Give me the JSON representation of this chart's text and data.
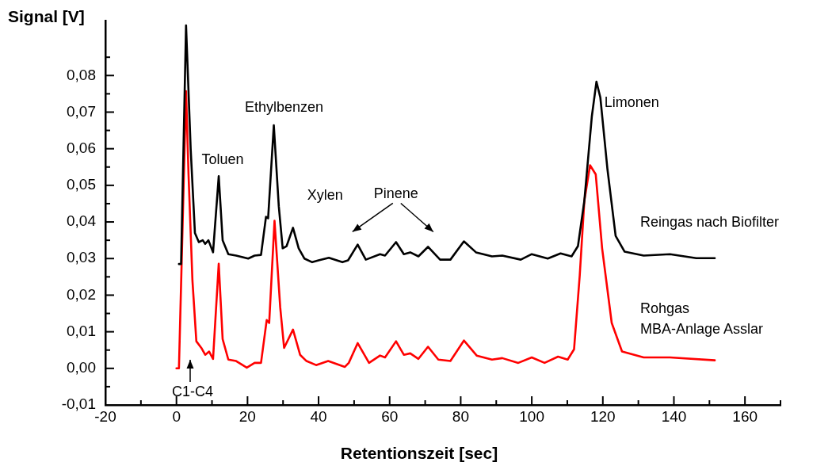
{
  "chart_data": {
    "type": "line",
    "xlabel": "Retentionszeit [sec]",
    "ylabel": "Signal [V]",
    "xlim": [
      -20,
      170
    ],
    "ylim": [
      -0.01,
      0.095
    ],
    "xticks": [
      {
        "value": -20,
        "label": "-20"
      },
      {
        "value": -10,
        "label": null
      },
      {
        "value": 0,
        "label": "0"
      },
      {
        "value": 10,
        "label": null
      },
      {
        "value": 20,
        "label": "20"
      },
      {
        "value": 30,
        "label": null
      },
      {
        "value": 40,
        "label": "40"
      },
      {
        "value": 50,
        "label": null
      },
      {
        "value": 60,
        "label": "60"
      },
      {
        "value": 70,
        "label": null
      },
      {
        "value": 80,
        "label": "80"
      },
      {
        "value": 90,
        "label": null
      },
      {
        "value": 100,
        "label": "100"
      },
      {
        "value": 110,
        "label": null
      },
      {
        "value": 120,
        "label": "120"
      },
      {
        "value": 130,
        "label": null
      },
      {
        "value": 140,
        "label": "140"
      },
      {
        "value": 150,
        "label": null
      },
      {
        "value": 160,
        "label": "160"
      },
      {
        "value": 170,
        "label": null
      }
    ],
    "yticks": [
      {
        "value": -0.01,
        "label": "-0,01"
      },
      {
        "value": -0.005,
        "label": null
      },
      {
        "value": 0,
        "label": "0,00"
      },
      {
        "value": 0.005,
        "label": null
      },
      {
        "value": 0.01,
        "label": "0,01"
      },
      {
        "value": 0.015,
        "label": null
      },
      {
        "value": 0.02,
        "label": "0,02"
      },
      {
        "value": 0.025,
        "label": null
      },
      {
        "value": 0.03,
        "label": "0,03"
      },
      {
        "value": 0.035,
        "label": null
      },
      {
        "value": 0.04,
        "label": "0,04"
      },
      {
        "value": 0.045,
        "label": null
      },
      {
        "value": 0.05,
        "label": "0,05"
      },
      {
        "value": 0.055,
        "label": null
      },
      {
        "value": 0.06,
        "label": "0,06"
      },
      {
        "value": 0.065,
        "label": null
      },
      {
        "value": 0.07,
        "label": "0,07"
      },
      {
        "value": 0.075,
        "label": null
      },
      {
        "value": 0.08,
        "label": "0,08"
      },
      {
        "value": 0.085,
        "label": null
      }
    ],
    "grid": false,
    "marker": "none",
    "line_style": "solid",
    "series": [
      {
        "name": "Reingas nach Biofilter",
        "color": "#000000",
        "x": [
          0.7,
          1.3,
          2.7,
          4.0,
          5.2,
          6.3,
          7.4,
          8.1,
          9.0,
          10.3,
          11.9,
          13.0,
          14.6,
          16.8,
          20.2,
          22.0,
          23.8,
          25.2,
          25.8,
          27.4,
          28.8,
          29.9,
          31.0,
          32.8,
          34.4,
          36.0,
          38.2,
          40.0,
          42.9,
          46.7,
          48.3,
          51.0,
          53.3,
          57.3,
          58.7,
          61.8,
          64.0,
          65.8,
          68.1,
          70.8,
          74.2,
          77.1,
          80.9,
          84.3,
          88.8,
          91.7,
          96.9,
          100.0,
          104.5,
          108.1,
          111.2,
          113.0,
          114.8,
          116.9,
          118.2,
          119.3,
          121.3,
          123.6,
          126.1,
          131.5,
          138.9,
          146.3,
          151.5
        ],
        "values": [
          0.0285,
          0.0285,
          0.0937,
          0.06,
          0.037,
          0.0345,
          0.035,
          0.034,
          0.035,
          0.0317,
          0.0525,
          0.035,
          0.0312,
          0.0308,
          0.03,
          0.0308,
          0.031,
          0.0414,
          0.041,
          0.0664,
          0.0443,
          0.0328,
          0.0334,
          0.0384,
          0.0328,
          0.03,
          0.029,
          0.0295,
          0.0302,
          0.029,
          0.0295,
          0.0338,
          0.0297,
          0.0312,
          0.0308,
          0.0345,
          0.0312,
          0.0317,
          0.0306,
          0.0332,
          0.0297,
          0.0297,
          0.0347,
          0.0317,
          0.0306,
          0.0308,
          0.0297,
          0.0312,
          0.03,
          0.0314,
          0.0306,
          0.0334,
          0.0458,
          0.0688,
          0.0783,
          0.074,
          0.0544,
          0.0362,
          0.0319,
          0.0308,
          0.0312,
          0.0301,
          0.0301
        ]
      },
      {
        "name": "Rohgas MBA-Anlage Asslar",
        "color": "#ff0000",
        "x": [
          0,
          0.7,
          2.7,
          3.4,
          4.5,
          5.6,
          7.0,
          8.1,
          9.2,
          10.3,
          11.9,
          13.0,
          14.6,
          16.8,
          19.8,
          22.0,
          23.8,
          25.4,
          26.1,
          27.6,
          29.2,
          30.3,
          32.8,
          34.8,
          36.6,
          39.3,
          42.7,
          47.4,
          48.5,
          51.0,
          54.2,
          57.3,
          58.7,
          61.8,
          64.0,
          65.8,
          68.1,
          70.8,
          73.7,
          77.1,
          80.9,
          84.5,
          88.8,
          91.7,
          96.2,
          100.0,
          103.6,
          107.4,
          110.1,
          111.9,
          113.5,
          114.8,
          116.4,
          118.0,
          119.8,
          122.5,
          125.4,
          131.5,
          138.9,
          151.5
        ],
        "values": [
          0.0,
          0.0,
          0.0757,
          0.053,
          0.024,
          0.0074,
          0.0056,
          0.0037,
          0.0046,
          0.0026,
          0.0286,
          0.008,
          0.0024,
          0.002,
          0.0002,
          0.0015,
          0.0015,
          0.0132,
          0.0124,
          0.0403,
          0.0167,
          0.0056,
          0.0106,
          0.0037,
          0.002,
          0.0009,
          0.002,
          0.0004,
          0.0015,
          0.0069,
          0.0015,
          0.0035,
          0.003,
          0.0074,
          0.0037,
          0.0041,
          0.0026,
          0.0059,
          0.0024,
          0.002,
          0.0076,
          0.0035,
          0.0024,
          0.0028,
          0.0015,
          0.003,
          0.0015,
          0.0032,
          0.0024,
          0.0052,
          0.0254,
          0.0458,
          0.0555,
          0.053,
          0.0328,
          0.0124,
          0.0046,
          0.003,
          0.003,
          0.0022
        ]
      }
    ],
    "annotations": [
      {
        "text": "Toluen",
        "x": 11.9,
        "y": 0.0525
      },
      {
        "text": "Ethylbenzen",
        "x": 27.4,
        "y": 0.0664
      },
      {
        "text": "Xylen",
        "x": 32.8,
        "y": 0.0384
      },
      {
        "text": "Pinene",
        "x": 61.8,
        "y": 0.0345
      },
      {
        "text": "Limonen",
        "x": 118.2,
        "y": 0.0783
      },
      "C1-C4"
    ]
  }
}
